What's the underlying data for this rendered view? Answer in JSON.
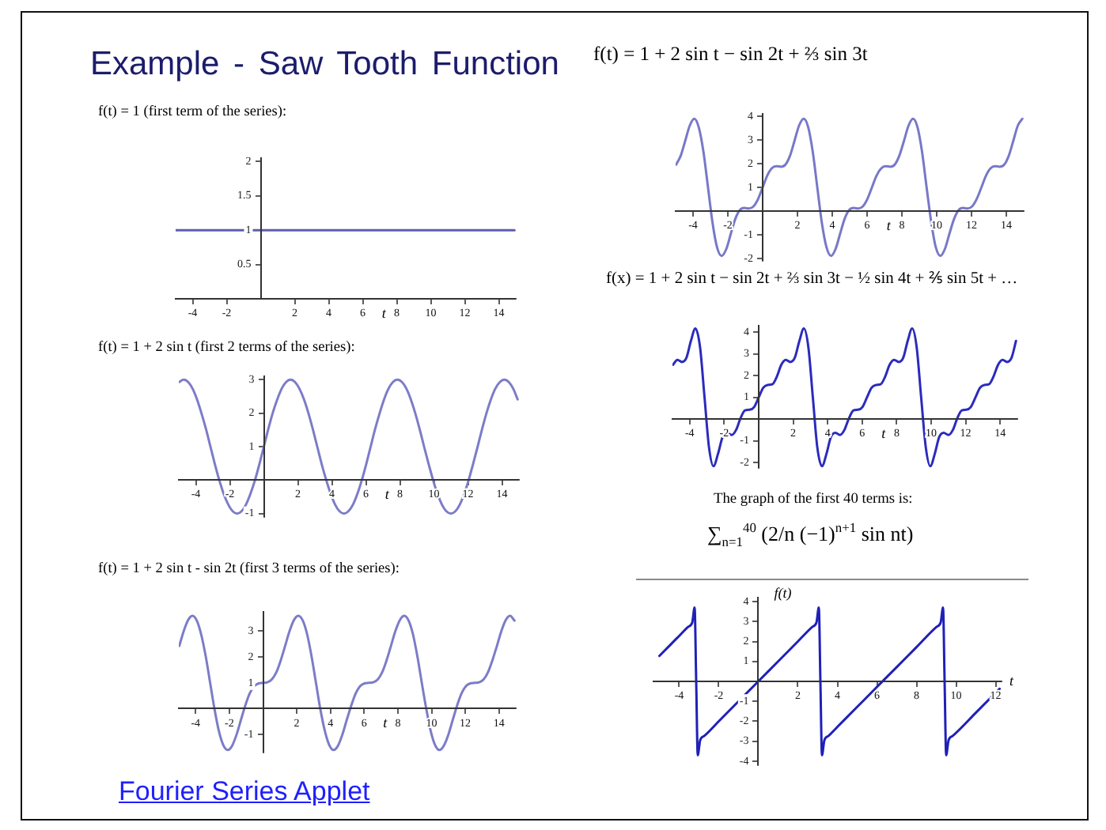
{
  "chart_data": [
    {
      "type": "other",
      "title": "Example - Saw Tooth Function"
    },
    {
      "type": "line",
      "title": "f(t) = 1 (first term of the series):",
      "xlabel": "t",
      "x": [
        -4.97,
        14.92
      ],
      "values": [
        1,
        1
      ],
      "color": "#5d5dae",
      "xlim": [
        -5,
        15
      ],
      "ylim": [
        0,
        2.05
      ],
      "xticks": [
        -4,
        -2,
        2,
        4,
        6,
        8,
        10,
        12,
        14
      ],
      "yticks": [
        0.5,
        1,
        1.5,
        2
      ]
    },
    {
      "type": "line",
      "title": "f(t) = 1 + 2 sin t (first 2 terms of the series):",
      "xlabel": "t",
      "x": [
        -4.97,
        -4.71,
        -4.45,
        -4.19,
        -3.93,
        -3.67,
        -3.4,
        -3.14,
        -2.88,
        -2.62,
        -2.36,
        -2.09,
        -1.83,
        -1.57,
        -1.31,
        -1.05,
        -0.79,
        -0.52,
        -0.26,
        0,
        0.26,
        0.52,
        0.79,
        1.05,
        1.31,
        1.57,
        1.83,
        2.09,
        2.36,
        2.62,
        2.88,
        3.14,
        3.4,
        3.67,
        3.93,
        4.19,
        4.45,
        4.71,
        4.97,
        5.24,
        5.5,
        5.76,
        6.02,
        6.28,
        6.54,
        6.81,
        7.07,
        7.33,
        7.59,
        7.85,
        8.12,
        8.38,
        8.64,
        8.9,
        9.16,
        9.42,
        9.69,
        9.95,
        10.21,
        10.47,
        10.73,
        11,
        11.26,
        11.52,
        11.78,
        12.04,
        12.3,
        12.57,
        12.83,
        13.09,
        13.35,
        13.61,
        13.88,
        14.14,
        14.4,
        14.66,
        14.92
      ],
      "values": [
        2.93,
        3,
        2.93,
        2.73,
        2.41,
        2,
        1.52,
        1,
        0.48,
        0,
        -0.41,
        -0.73,
        -0.93,
        -1,
        -0.93,
        -0.73,
        -0.41,
        0,
        0.48,
        1,
        1.52,
        2,
        2.41,
        2.73,
        2.93,
        3,
        2.93,
        2.73,
        2.41,
        2,
        1.52,
        1,
        0.48,
        0,
        -0.41,
        -0.73,
        -0.93,
        -1,
        -0.93,
        -0.73,
        -0.41,
        0,
        0.48,
        1,
        1.52,
        2,
        2.41,
        2.73,
        2.93,
        3,
        2.93,
        2.73,
        2.41,
        2,
        1.52,
        1,
        0.48,
        0,
        -0.41,
        -0.73,
        -0.93,
        -1,
        -0.93,
        -0.73,
        -0.41,
        0,
        0.48,
        1,
        1.52,
        2,
        2.41,
        2.73,
        2.93,
        3,
        2.93,
        2.73,
        2.41
      ],
      "color": "#7c7cc8",
      "xlim": [
        -5,
        15
      ],
      "ylim": [
        -1.1,
        3.1
      ],
      "xticks": [
        -4,
        -2,
        2,
        4,
        6,
        8,
        10,
        12,
        14
      ],
      "yticks": [
        -1,
        1,
        2,
        3
      ]
    },
    {
      "type": "line",
      "title": "f(t) = 1 + 2 sin t - sin 2t (first 3 terms of the series):",
      "xlabel": "t",
      "x": [
        -4.97,
        -4.71,
        -4.45,
        -4.19,
        -3.93,
        -3.67,
        -3.4,
        -3.14,
        -2.88,
        -2.62,
        -2.36,
        -2.09,
        -1.83,
        -1.57,
        -1.31,
        -1.05,
        -0.79,
        -0.52,
        -0.26,
        0,
        0.26,
        0.52,
        0.79,
        1.05,
        1.31,
        1.57,
        1.83,
        2.09,
        2.36,
        2.62,
        2.88,
        3.14,
        3.4,
        3.67,
        3.93,
        4.19,
        4.45,
        4.71,
        4.97,
        5.24,
        5.5,
        5.76,
        6.02,
        6.28,
        6.54,
        6.81,
        7.07,
        7.33,
        7.59,
        7.85,
        8.12,
        8.38,
        8.64,
        8.9,
        9.16,
        9.42,
        9.69,
        9.95,
        10.21,
        10.47,
        10.73,
        11,
        11.26,
        11.52,
        11.78,
        12.04,
        12.3,
        12.57,
        12.83,
        13.09,
        13.35,
        13.61,
        13.88,
        14.14,
        14.4,
        14.66,
        14.92
      ],
      "values": [
        2.43,
        3,
        3.43,
        3.6,
        3.41,
        2.87,
        2.02,
        1,
        -0.02,
        -0.87,
        -1.41,
        -1.6,
        -1.43,
        -1,
        -0.43,
        0.13,
        0.59,
        0.87,
        0.98,
        1,
        1.02,
        1.13,
        1.41,
        1.87,
        2.43,
        3,
        3.43,
        3.6,
        3.41,
        2.87,
        2.02,
        1,
        -0.02,
        -0.87,
        -1.41,
        -1.6,
        -1.43,
        -1,
        -0.43,
        0.13,
        0.59,
        0.87,
        0.98,
        1,
        1.02,
        1.13,
        1.41,
        1.87,
        2.43,
        3,
        3.43,
        3.6,
        3.41,
        2.87,
        2.02,
        1,
        -0.02,
        -0.87,
        -1.41,
        -1.6,
        -1.43,
        -1,
        -0.43,
        0.13,
        0.59,
        0.87,
        0.98,
        1,
        1.02,
        1.13,
        1.41,
        1.87,
        2.43,
        3,
        3.43,
        3.6,
        3.41
      ],
      "color": "#7c7cc8",
      "xlim": [
        -5,
        15
      ],
      "ylim": [
        -1.7,
        3.75
      ],
      "xticks": [
        -4,
        -2,
        2,
        4,
        6,
        8,
        10,
        12,
        14
      ],
      "yticks": [
        -1,
        1,
        2,
        3
      ]
    },
    {
      "type": "line",
      "title": "f(t) = 1 + 2 sin t − sin 2t + ⅔ sin 3t",
      "xlabel": "t",
      "x": [
        -4.97,
        -4.71,
        -4.45,
        -4.19,
        -3.93,
        -3.67,
        -3.4,
        -3.14,
        -2.88,
        -2.62,
        -2.36,
        -2.09,
        -1.83,
        -1.57,
        -1.31,
        -1.05,
        -0.79,
        -0.52,
        -0.26,
        0,
        0.26,
        0.52,
        0.79,
        1.05,
        1.31,
        1.57,
        1.83,
        2.09,
        2.36,
        2.62,
        2.88,
        3.14,
        3.4,
        3.67,
        3.93,
        4.19,
        4.45,
        4.71,
        4.97,
        5.24,
        5.5,
        5.76,
        6.02,
        6.28,
        6.54,
        6.81,
        7.07,
        7.33,
        7.59,
        7.85,
        8.12,
        8.38,
        8.64,
        8.9,
        9.16,
        9.42,
        9.69,
        9.95,
        10.21,
        10.47,
        10.73,
        11,
        11.26,
        11.52,
        11.78,
        12.04,
        12.3,
        12.57,
        12.83,
        13.09,
        13.35,
        13.61,
        13.88,
        14.14,
        14.4,
        14.66,
        14.92
      ],
      "values": [
        1.96,
        2.33,
        2.96,
        3.6,
        3.89,
        3.53,
        2.49,
        1,
        -0.49,
        -1.53,
        -1.89,
        -1.6,
        -0.96,
        -0.33,
        0.04,
        0.13,
        0.11,
        0.2,
        0.51,
        1,
        1.49,
        1.8,
        1.89,
        1.87,
        1.96,
        2.33,
        2.96,
        3.6,
        3.89,
        3.53,
        2.49,
        1,
        -0.49,
        -1.53,
        -1.89,
        -1.6,
        -0.96,
        -0.33,
        0.04,
        0.13,
        0.11,
        0.2,
        0.51,
        1,
        1.49,
        1.8,
        1.89,
        1.87,
        1.96,
        2.33,
        2.96,
        3.6,
        3.89,
        3.53,
        2.49,
        1,
        -0.49,
        -1.53,
        -1.89,
        -1.6,
        -0.96,
        -0.33,
        0.04,
        0.13,
        0.11,
        0.2,
        0.51,
        1,
        1.49,
        1.8,
        1.89,
        1.87,
        1.96,
        2.33,
        2.96,
        3.6,
        3.89
      ],
      "color": "#7878c8",
      "xlim": [
        -5,
        15
      ],
      "ylim": [
        -2.1,
        4.1
      ],
      "xticks": [
        -4,
        -2,
        2,
        4,
        6,
        8,
        10,
        12,
        14
      ],
      "yticks": [
        -2,
        -1,
        1,
        2,
        3,
        4
      ]
    },
    {
      "type": "line",
      "title": "f(x) = 1 + 2 sin t − sin 2t + ⅔ sin 3t − ½ sin 4t + ⅖ sin 5t + …",
      "xlabel": "t",
      "x": [
        -4.97,
        -4.71,
        -4.45,
        -4.19,
        -3.93,
        -3.67,
        -3.4,
        -3.14,
        -2.88,
        -2.62,
        -2.36,
        -2.09,
        -1.83,
        -1.57,
        -1.31,
        -1.05,
        -0.79,
        -0.52,
        -0.26,
        0,
        0.26,
        0.52,
        0.79,
        1.05,
        1.31,
        1.57,
        1.83,
        2.09,
        2.36,
        2.62,
        2.88,
        3.14,
        3.4,
        3.67,
        3.93,
        4.19,
        4.45,
        4.71,
        4.97,
        5.24,
        5.5,
        5.76,
        6.02,
        6.28,
        6.54,
        6.81,
        7.07,
        7.33,
        7.59,
        7.85,
        8.12,
        8.38,
        8.64,
        8.9,
        9.16,
        9.42,
        9.69,
        9.95,
        10.21,
        10.47,
        10.73,
        11,
        11.26,
        11.52,
        11.78,
        12.04,
        12.3,
        12.57,
        12.83,
        13.09,
        13.35,
        13.61,
        13.88,
        14.14,
        14.4,
        14.66,
        14.92
      ],
      "values": [
        2.5,
        2.73,
        2.63,
        2.82,
        3.6,
        4.17,
        3.31,
        1,
        -1.31,
        -2.17,
        -1.6,
        -0.82,
        -0.63,
        -0.73,
        -0.5,
        0.05,
        0.4,
        0.43,
        0.56,
        1,
        1.44,
        1.57,
        1.6,
        1.95,
        2.5,
        2.73,
        2.63,
        2.82,
        3.6,
        4.17,
        3.31,
        1,
        -1.31,
        -2.17,
        -1.6,
        -0.82,
        -0.63,
        -0.73,
        -0.5,
        0.05,
        0.4,
        0.43,
        0.56,
        1,
        1.44,
        1.57,
        1.6,
        1.95,
        2.5,
        2.73,
        2.63,
        2.82,
        3.6,
        4.17,
        3.31,
        1,
        -1.31,
        -2.17,
        -1.6,
        -0.82,
        -0.63,
        -0.73,
        -0.5,
        0.05,
        0.4,
        0.43,
        0.56,
        1,
        1.44,
        1.57,
        1.6,
        1.95,
        2.5,
        2.73,
        2.63,
        2.82,
        3.6
      ],
      "color": "#2b2bbd",
      "xlim": [
        -5,
        15
      ],
      "ylim": [
        -2.25,
        4.3
      ],
      "xticks": [
        -4,
        -2,
        2,
        4,
        6,
        8,
        10,
        12,
        14
      ],
      "yticks": [
        -2,
        -1,
        1,
        2,
        3,
        4
      ]
    },
    {
      "type": "line",
      "title": "The graph of the first 40 terms is:",
      "subtitle": "∑$_{n=1}$$^{40}$ (2/n (−1)$^{n+1}$ sin nt)",
      "xlabel": "t",
      "ylabel": "f(t)",
      "x": [
        -5,
        -4.5,
        -4,
        -3.54,
        -3.34,
        -3.22,
        -3.14,
        -3.06,
        -2.94,
        -2.74,
        -2,
        -1,
        0,
        1,
        2,
        2.74,
        2.94,
        3.06,
        3.14,
        3.22,
        3.34,
        3.54,
        4,
        5,
        6,
        7,
        8,
        9.02,
        9.22,
        9.34,
        9.42,
        9.5,
        9.62,
        9.82,
        11,
        12.2
      ],
      "values": [
        1.28,
        1.78,
        2.28,
        2.74,
        2.95,
        3.7,
        0,
        -3.7,
        -2.95,
        -2.74,
        -2,
        -1,
        0,
        1,
        2,
        2.74,
        2.95,
        3.7,
        0,
        -3.7,
        -2.95,
        -2.74,
        -2.28,
        -1.28,
        -0.28,
        0.72,
        1.72,
        2.74,
        2.95,
        3.7,
        0,
        -3.7,
        -2.95,
        -2.74,
        -1.57,
        -0.37
      ],
      "color": "#2020b8",
      "xlim": [
        -5.3,
        12.3
      ],
      "ylim": [
        -4.2,
        4.2
      ],
      "xticks": [
        -4,
        -2,
        2,
        4,
        6,
        8,
        10,
        12
      ],
      "yticks": [
        -4,
        -3,
        -2,
        -1,
        1,
        2,
        3,
        4
      ]
    },
    {
      "type": "other",
      "annotations": [
        "Fourier Series Applet"
      ]
    }
  ]
}
